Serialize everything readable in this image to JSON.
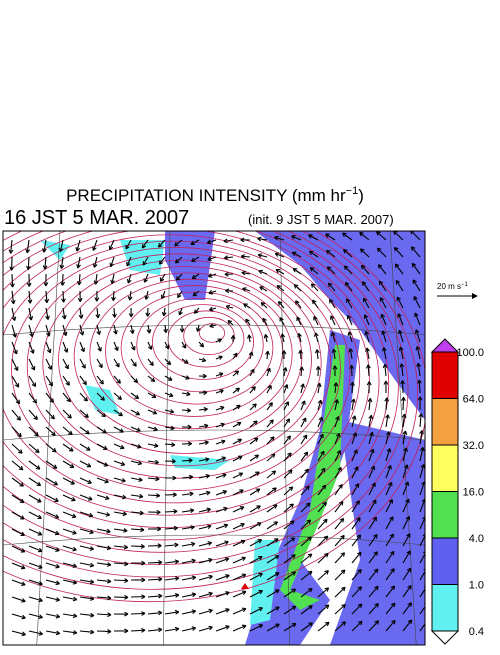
{
  "header": {
    "title": "PRECIPITATION INTENSITY (mm hr",
    "title_sup": "−1",
    "title_end": ")",
    "time": "16 JST 5 MAR. 2007",
    "init": "(init. 9 JST 5 MAR. 2007)"
  },
  "wind_scale": {
    "label": "20 m s",
    "label_sup": "−1"
  },
  "colorbar": {
    "levels": [
      "100.0",
      "64.0",
      "32.0",
      "16.0",
      "4.0",
      "1.0",
      "0.4"
    ],
    "colors": [
      "#e00000",
      "#f4a040",
      "#ffff60",
      "#50e050",
      "#6060f0",
      "#60f0f0"
    ],
    "over_color": "#c040f0",
    "under_color": "#ffffff"
  }
}
